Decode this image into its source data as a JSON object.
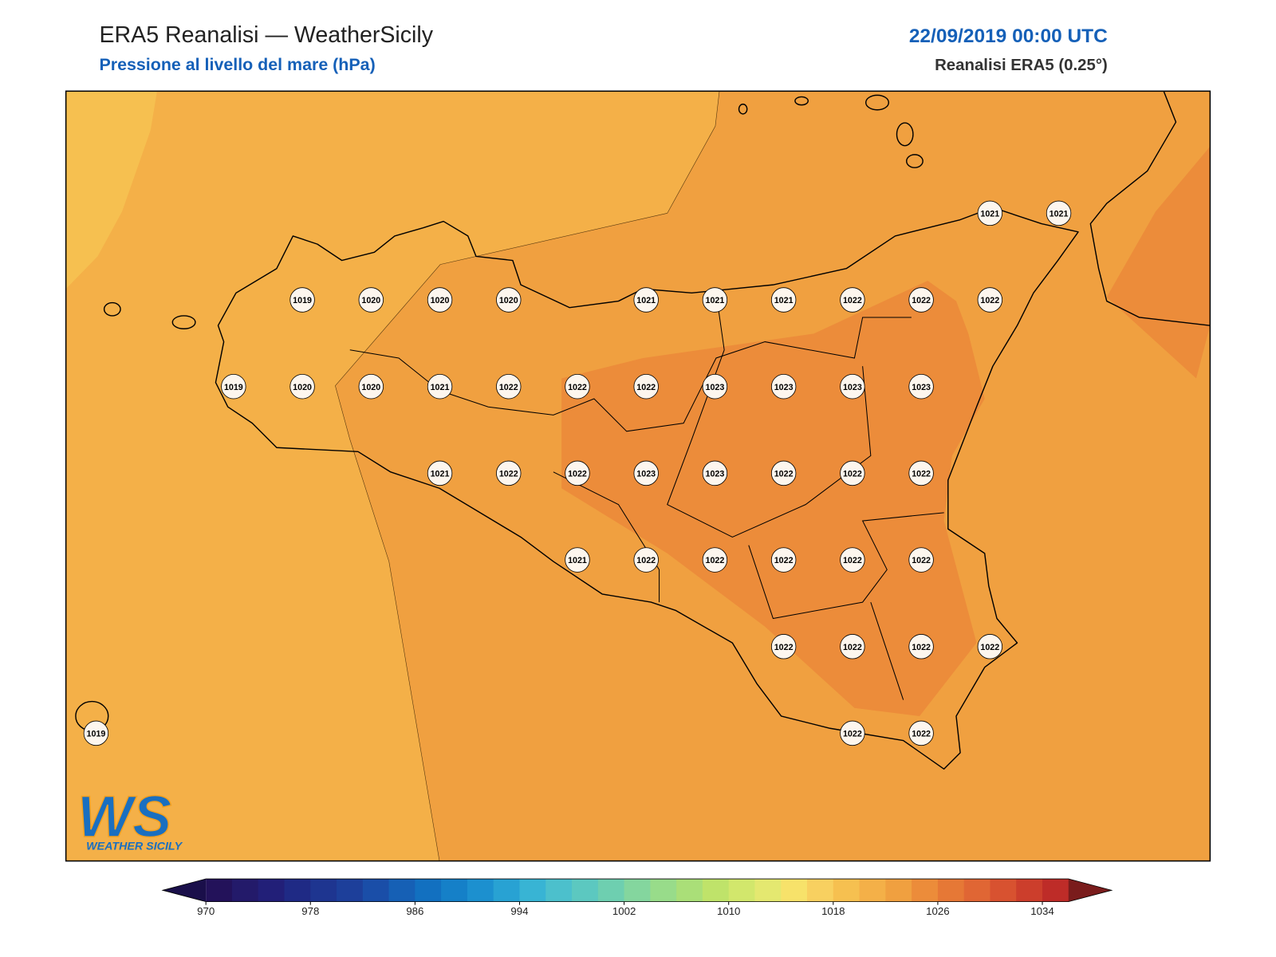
{
  "header": {
    "title": "ERA5 Reanalisi — WeatherSicily",
    "subtitle": "Pressione al livello del mare (hPa)",
    "datetime": "22/09/2019 00:00 UTC",
    "source": "Reanalisi ERA5 (0.25°)"
  },
  "logo": {
    "mark": "WS",
    "name": "WEATHER SICILY"
  },
  "grid": [
    [
      null,
      null,
      null,
      null,
      null,
      null,
      null,
      null,
      null,
      null,
      null,
      null,
      null,
      1021,
      1021
    ],
    [
      null,
      null,
      null,
      1019,
      1020,
      1020,
      1020,
      null,
      1021,
      1021,
      1021,
      1022,
      1022,
      1022,
      null
    ],
    [
      null,
      null,
      1019,
      1020,
      1020,
      1021,
      1022,
      1022,
      1022,
      1023,
      1023,
      1023,
      1023,
      null,
      null
    ],
    [
      null,
      null,
      null,
      null,
      null,
      1021,
      1022,
      1022,
      1023,
      1023,
      1022,
      1022,
      1022,
      null,
      null
    ],
    [
      null,
      null,
      null,
      null,
      null,
      null,
      null,
      1021,
      1022,
      1022,
      1022,
      1022,
      1022,
      null,
      null
    ],
    [
      null,
      null,
      null,
      null,
      null,
      null,
      null,
      null,
      null,
      null,
      1022,
      1022,
      1022,
      1022,
      null
    ],
    [
      1019,
      null,
      null,
      null,
      null,
      null,
      null,
      null,
      null,
      null,
      null,
      1022,
      1022,
      null,
      null
    ]
  ],
  "colorbar": {
    "range": [
      970,
      1036
    ],
    "ticks": [
      970,
      978,
      986,
      994,
      1002,
      1010,
      1018,
      1026,
      1034
    ],
    "colors": [
      "#23125a",
      "#231a6a",
      "#221f78",
      "#1f2a85",
      "#1e3590",
      "#1d3f9a",
      "#1a4ea8",
      "#1660b5",
      "#1270c0",
      "#1580c8",
      "#1c90cf",
      "#28a2d3",
      "#38b4d4",
      "#4cc0cc",
      "#5cc8c0",
      "#6ecfb0",
      "#84d69e",
      "#98dc8a",
      "#aadf78",
      "#bfe36a",
      "#d2e76c",
      "#e4e870",
      "#f7e26a",
      "#f8d060",
      "#f6c050",
      "#f4b048",
      "#f0a040",
      "#ec8c3a",
      "#e67836",
      "#e06634",
      "#d85230",
      "#cc3e2c",
      "#be2c28"
    ],
    "under": "#1a0f4a",
    "over": "#7a1c1c"
  }
}
